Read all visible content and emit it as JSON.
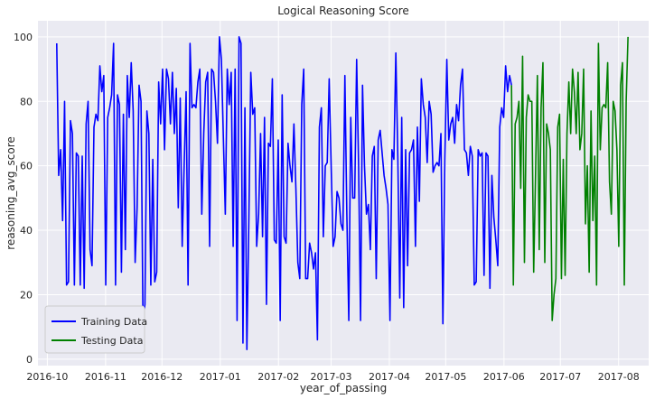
{
  "chart_data": {
    "type": "line",
    "title": "Logical Reasoning Score",
    "xlabel": "year_of_passing",
    "ylabel": "reasoning_avg_score",
    "x_type": "date",
    "xlim": [
      "2016-09-26",
      "2017-08-17"
    ],
    "ylim": [
      -2,
      105
    ],
    "grid": true,
    "legend": "lower-left",
    "background_color": "#eaeaf2",
    "x_ticks": [
      {
        "date": "2016-10-01",
        "label": "2016-10"
      },
      {
        "date": "2016-11-01",
        "label": "2016-11"
      },
      {
        "date": "2016-12-01",
        "label": "2016-12"
      },
      {
        "date": "2017-01-01",
        "label": "2017-01"
      },
      {
        "date": "2017-02-01",
        "label": "2017-02"
      },
      {
        "date": "2017-03-01",
        "label": "2017-03"
      },
      {
        "date": "2017-04-01",
        "label": "2017-04"
      },
      {
        "date": "2017-05-01",
        "label": "2017-05"
      },
      {
        "date": "2017-06-01",
        "label": "2017-06"
      },
      {
        "date": "2017-07-01",
        "label": "2017-07"
      },
      {
        "date": "2017-08-01",
        "label": "2017-08"
      }
    ],
    "y_ticks": [
      0,
      20,
      40,
      60,
      80,
      100
    ],
    "series": [
      {
        "name": "Training Data",
        "color": "#0000ff",
        "x_start": "2016-10-06",
        "x_end": "2017-06-05",
        "y": [
          98,
          57,
          65,
          43,
          80,
          23,
          24,
          74,
          70,
          23,
          64,
          63,
          23,
          63,
          22,
          73,
          80,
          34,
          29,
          72,
          76,
          74,
          91,
          83,
          88,
          23,
          75,
          78,
          82,
          98,
          23,
          82,
          79,
          27,
          76,
          34,
          88,
          75,
          92,
          77,
          30,
          47,
          85,
          80,
          12,
          17,
          77,
          70,
          23,
          62,
          24,
          27,
          86,
          73,
          90,
          65,
          90,
          87,
          73,
          89,
          70,
          84,
          47,
          81,
          35,
          60,
          83,
          23,
          98,
          78,
          79,
          78,
          86,
          90,
          45,
          70,
          86,
          89,
          35,
          90,
          89,
          80,
          67,
          100,
          93,
          69,
          45,
          90,
          79,
          89,
          35,
          90,
          12,
          100,
          98,
          5,
          78,
          3,
          43,
          89,
          76,
          78,
          35,
          45,
          70,
          38,
          75,
          17,
          67,
          66,
          87,
          37,
          36,
          68,
          12,
          82,
          38,
          36,
          67,
          60,
          55,
          73,
          53,
          30,
          25,
          79,
          90,
          25,
          25,
          36,
          33,
          28,
          33,
          6,
          72,
          78,
          38,
          60,
          61,
          87,
          60,
          35,
          38,
          52,
          50,
          42,
          40,
          88,
          45,
          12,
          75,
          50,
          50,
          93,
          60,
          12,
          85,
          60,
          45,
          48,
          34,
          63,
          66,
          25,
          68,
          71,
          64,
          57,
          53,
          48,
          12,
          65,
          62,
          95,
          63,
          19,
          75,
          16,
          65,
          29,
          64,
          65,
          68,
          35,
          72,
          49,
          87,
          79,
          75,
          61,
          80,
          76,
          58,
          60,
          61,
          60,
          70,
          11,
          62,
          93,
          68,
          73,
          75,
          67,
          79,
          74,
          85,
          90,
          65,
          64,
          57,
          66,
          63,
          23,
          24,
          65,
          63,
          64,
          26,
          64,
          63,
          22,
          57,
          44,
          37,
          29,
          72,
          78,
          75,
          91,
          83,
          88,
          85
        ]
      },
      {
        "name": "Testing Data",
        "color": "#008000",
        "x_start": "2017-06-05",
        "x_end": "2017-08-06",
        "y": [
          85,
          23,
          73,
          75,
          80,
          53,
          94,
          30,
          75,
          82,
          80,
          80,
          27,
          57,
          88,
          34,
          78,
          92,
          30,
          73,
          70,
          65,
          12,
          20,
          25,
          72,
          76,
          25,
          62,
          26,
          70,
          86,
          70,
          90,
          83,
          70,
          89,
          65,
          70,
          90,
          42,
          60,
          27,
          77,
          43,
          63,
          23,
          98,
          65,
          78,
          79,
          78,
          92,
          55,
          45,
          80,
          77,
          65,
          35,
          85,
          92,
          23,
          80,
          100
        ]
      }
    ]
  }
}
